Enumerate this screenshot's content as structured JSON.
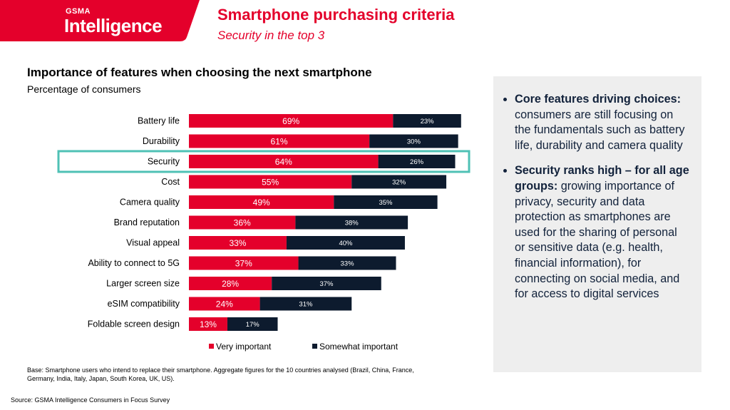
{
  "header": {
    "logo_small": "GSMA",
    "logo_big": "Intelligence",
    "title": "Smartphone purchasing criteria",
    "subtitle": "Security in the top 3",
    "brand_color": "#e4002b",
    "navy_color": "#0d1b2e"
  },
  "chart_data": {
    "type": "bar",
    "orientation": "horizontal",
    "stacked": true,
    "title": "Importance of features when choosing the next smartphone",
    "subtitle": "Percentage of consumers",
    "categories": [
      "Battery life",
      "Durability",
      "Security",
      "Cost",
      "Camera quality",
      "Brand reputation",
      "Visual appeal",
      "Ability to connect to 5G",
      "Larger screen size",
      "eSIM compatibility",
      "Foldable screen design"
    ],
    "series": [
      {
        "name": "Very important",
        "color": "#e4002b",
        "values": [
          69,
          61,
          64,
          55,
          49,
          36,
          33,
          37,
          28,
          24,
          13
        ]
      },
      {
        "name": "Somewhat important",
        "color": "#0d1b2e",
        "values": [
          23,
          30,
          26,
          32,
          35,
          38,
          40,
          33,
          37,
          31,
          17
        ]
      }
    ],
    "value_suffix": "%",
    "highlighted_category": "Security",
    "highlight_color": "#4fc1b5",
    "legend_position": "bottom"
  },
  "panel": {
    "bullets": [
      {
        "bold": "Core features driving choices:",
        "text": " consumers are still focusing on the fundamentals such as battery life, durability and camera quality"
      },
      {
        "bold": "Security ranks high – for all age groups:",
        "text": " growing importance of privacy, security and data protection as smartphones are used for the sharing of personal or sensitive data (e.g. health, financial information), for connecting on social media, and for access to digital services"
      }
    ]
  },
  "footer": {
    "base": "Base: Smartphone users who intend to replace their smartphone. Aggregate figures for the 10 countries analysed (Brazil, China, France, Germany, India, Italy, Japan, South Korea, UK, US).",
    "source": "Source: GSMA Intelligence Consumers in Focus Survey"
  }
}
